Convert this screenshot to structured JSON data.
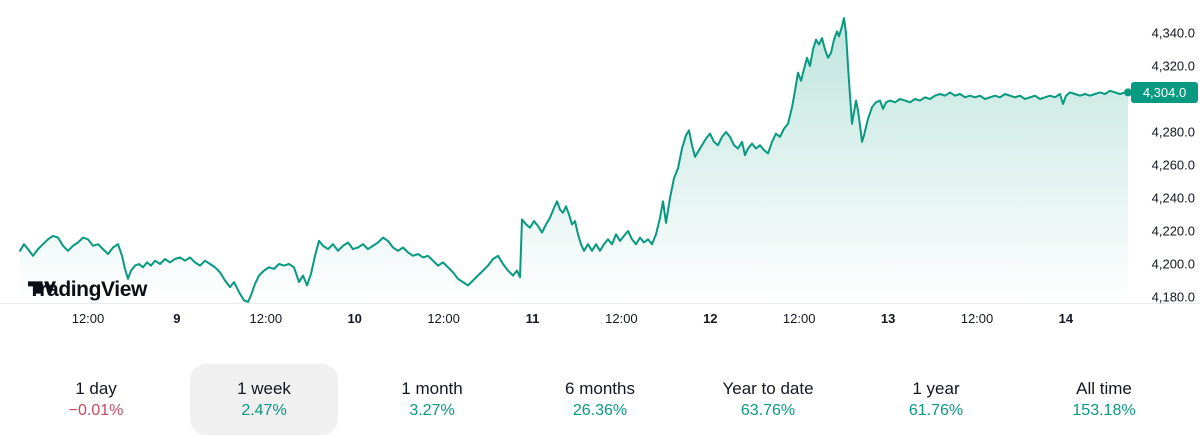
{
  "brand": {
    "name": "TradingView"
  },
  "theme": {
    "positive": "#089981",
    "negative": "#c64a5f",
    "selected_bg": "#f0f0f0",
    "text": "#131722",
    "badge_bg": "#089981"
  },
  "chart_data": {
    "type": "area",
    "title": "",
    "xlabel": "",
    "ylabel": "",
    "grid": false,
    "legend": false,
    "line_color": "#089981",
    "ylim": [
      4170,
      4355
    ],
    "current_price_label": "4,304.0",
    "current_price_value": 4304.0,
    "y_ticks": [
      {
        "value": 4340,
        "label": "4,340.0"
      },
      {
        "value": 4320,
        "label": "4,320.0"
      },
      {
        "value": 4280,
        "label": "4,280.0"
      },
      {
        "value": 4260,
        "label": "4,260.0"
      },
      {
        "value": 4240,
        "label": "4,240.0"
      },
      {
        "value": 4220,
        "label": "4,220.0"
      },
      {
        "value": 4200,
        "label": "4,200.0"
      },
      {
        "value": 4180,
        "label": "4,180.0"
      }
    ],
    "x_ticks": [
      {
        "label": "12:00",
        "bold": false
      },
      {
        "label": "9",
        "bold": true
      },
      {
        "label": "12:00",
        "bold": false
      },
      {
        "label": "10",
        "bold": true
      },
      {
        "label": "12:00",
        "bold": false
      },
      {
        "label": "11",
        "bold": true
      },
      {
        "label": "12:00",
        "bold": false
      },
      {
        "label": "12",
        "bold": true
      },
      {
        "label": "12:00",
        "bold": false
      },
      {
        "label": "13",
        "bold": true
      },
      {
        "label": "12:00",
        "bold": false
      },
      {
        "label": "14",
        "bold": true
      }
    ],
    "points": [
      [
        20,
        4208
      ],
      [
        24,
        4212
      ],
      [
        28,
        4209
      ],
      [
        33,
        4205
      ],
      [
        38,
        4209
      ],
      [
        43,
        4212
      ],
      [
        48,
        4215
      ],
      [
        53,
        4217
      ],
      [
        58,
        4216
      ],
      [
        63,
        4211
      ],
      [
        68,
        4208
      ],
      [
        73,
        4211
      ],
      [
        78,
        4213
      ],
      [
        83,
        4216
      ],
      [
        88,
        4215
      ],
      [
        93,
        4211
      ],
      [
        98,
        4212
      ],
      [
        103,
        4209
      ],
      [
        108,
        4206
      ],
      [
        113,
        4210
      ],
      [
        118,
        4212
      ],
      [
        122,
        4205
      ],
      [
        125,
        4197
      ],
      [
        128,
        4191
      ],
      [
        131,
        4196
      ],
      [
        135,
        4199
      ],
      [
        139,
        4200
      ],
      [
        143,
        4198
      ],
      [
        147,
        4201
      ],
      [
        151,
        4199
      ],
      [
        155,
        4202
      ],
      [
        160,
        4200
      ],
      [
        165,
        4203
      ],
      [
        170,
        4201
      ],
      [
        175,
        4203
      ],
      [
        180,
        4204
      ],
      [
        185,
        4202
      ],
      [
        190,
        4204
      ],
      [
        195,
        4201
      ],
      [
        200,
        4199
      ],
      [
        205,
        4202
      ],
      [
        210,
        4200
      ],
      [
        215,
        4198
      ],
      [
        220,
        4195
      ],
      [
        225,
        4190
      ],
      [
        230,
        4186
      ],
      [
        234,
        4189
      ],
      [
        239,
        4183
      ],
      [
        244,
        4178
      ],
      [
        248,
        4177
      ],
      [
        251,
        4181
      ],
      [
        255,
        4188
      ],
      [
        259,
        4193
      ],
      [
        264,
        4196
      ],
      [
        269,
        4198
      ],
      [
        274,
        4197
      ],
      [
        279,
        4200
      ],
      [
        284,
        4199
      ],
      [
        289,
        4200
      ],
      [
        294,
        4198
      ],
      [
        299,
        4189
      ],
      [
        303,
        4193
      ],
      [
        307,
        4187
      ],
      [
        311,
        4194
      ],
      [
        315,
        4205
      ],
      [
        319,
        4214
      ],
      [
        323,
        4211
      ],
      [
        328,
        4209
      ],
      [
        333,
        4212
      ],
      [
        338,
        4208
      ],
      [
        343,
        4211
      ],
      [
        348,
        4213
      ],
      [
        353,
        4209
      ],
      [
        358,
        4210
      ],
      [
        363,
        4212
      ],
      [
        368,
        4209
      ],
      [
        373,
        4211
      ],
      [
        378,
        4213
      ],
      [
        383,
        4216
      ],
      [
        388,
        4214
      ],
      [
        393,
        4210
      ],
      [
        398,
        4208
      ],
      [
        403,
        4210
      ],
      [
        408,
        4207
      ],
      [
        413,
        4205
      ],
      [
        418,
        4206
      ],
      [
        423,
        4204
      ],
      [
        428,
        4205
      ],
      [
        433,
        4202
      ],
      [
        438,
        4199
      ],
      [
        443,
        4201
      ],
      [
        448,
        4198
      ],
      [
        453,
        4195
      ],
      [
        458,
        4191
      ],
      [
        463,
        4189
      ],
      [
        468,
        4187
      ],
      [
        473,
        4190
      ],
      [
        478,
        4193
      ],
      [
        483,
        4196
      ],
      [
        488,
        4199
      ],
      [
        493,
        4203
      ],
      [
        498,
        4205
      ],
      [
        503,
        4200
      ],
      [
        508,
        4196
      ],
      [
        513,
        4193
      ],
      [
        517,
        4196
      ],
      [
        520,
        4192
      ],
      [
        522,
        4227
      ],
      [
        526,
        4224
      ],
      [
        530,
        4222
      ],
      [
        534,
        4226
      ],
      [
        538,
        4223
      ],
      [
        542,
        4219
      ],
      [
        546,
        4224
      ],
      [
        550,
        4228
      ],
      [
        554,
        4234
      ],
      [
        557,
        4238
      ],
      [
        560,
        4233
      ],
      [
        563,
        4231
      ],
      [
        566,
        4235
      ],
      [
        569,
        4230
      ],
      [
        572,
        4224
      ],
      [
        575,
        4226
      ],
      [
        578,
        4218
      ],
      [
        581,
        4212
      ],
      [
        584,
        4208
      ],
      [
        588,
        4212
      ],
      [
        592,
        4208
      ],
      [
        596,
        4212
      ],
      [
        600,
        4208
      ],
      [
        604,
        4212
      ],
      [
        608,
        4215
      ],
      [
        612,
        4212
      ],
      [
        616,
        4218
      ],
      [
        620,
        4214
      ],
      [
        624,
        4217
      ],
      [
        628,
        4220
      ],
      [
        632,
        4215
      ],
      [
        636,
        4212
      ],
      [
        640,
        4216
      ],
      [
        644,
        4213
      ],
      [
        648,
        4215
      ],
      [
        652,
        4212
      ],
      [
        656,
        4218
      ],
      [
        660,
        4228
      ],
      [
        663,
        4238
      ],
      [
        666,
        4225
      ],
      [
        670,
        4240
      ],
      [
        674,
        4252
      ],
      [
        678,
        4258
      ],
      [
        682,
        4270
      ],
      [
        686,
        4278
      ],
      [
        689,
        4281
      ],
      [
        692,
        4272
      ],
      [
        695,
        4265
      ],
      [
        698,
        4268
      ],
      [
        702,
        4272
      ],
      [
        706,
        4276
      ],
      [
        710,
        4279
      ],
      [
        714,
        4274
      ],
      [
        718,
        4272
      ],
      [
        722,
        4277
      ],
      [
        726,
        4280
      ],
      [
        730,
        4277
      ],
      [
        734,
        4272
      ],
      [
        738,
        4270
      ],
      [
        742,
        4274
      ],
      [
        745,
        4266
      ],
      [
        748,
        4270
      ],
      [
        752,
        4273
      ],
      [
        756,
        4270
      ],
      [
        760,
        4272
      ],
      [
        764,
        4269
      ],
      [
        768,
        4267
      ],
      [
        772,
        4274
      ],
      [
        776,
        4279
      ],
      [
        780,
        4277
      ],
      [
        784,
        4282
      ],
      [
        788,
        4285
      ],
      [
        792,
        4295
      ],
      [
        795,
        4305
      ],
      [
        798,
        4316
      ],
      [
        801,
        4311
      ],
      [
        804,
        4318
      ],
      [
        807,
        4325
      ],
      [
        810,
        4320
      ],
      [
        813,
        4330
      ],
      [
        816,
        4336
      ],
      [
        819,
        4333
      ],
      [
        822,
        4337
      ],
      [
        825,
        4330
      ],
      [
        828,
        4325
      ],
      [
        831,
        4328
      ],
      [
        834,
        4336
      ],
      [
        837,
        4341
      ],
      [
        839,
        4338
      ],
      [
        842,
        4344
      ],
      [
        844,
        4349
      ],
      [
        846,
        4340
      ],
      [
        848,
        4320
      ],
      [
        850,
        4302
      ],
      [
        852,
        4285
      ],
      [
        854,
        4292
      ],
      [
        856,
        4299
      ],
      [
        858,
        4293
      ],
      [
        860,
        4284
      ],
      [
        862,
        4274
      ],
      [
        864,
        4278
      ],
      [
        868,
        4288
      ],
      [
        872,
        4295
      ],
      [
        876,
        4298
      ],
      [
        880,
        4299
      ],
      [
        883,
        4294
      ],
      [
        886,
        4298
      ],
      [
        890,
        4299
      ],
      [
        895,
        4298
      ],
      [
        900,
        4300
      ],
      [
        905,
        4299
      ],
      [
        910,
        4298
      ],
      [
        915,
        4300
      ],
      [
        920,
        4299
      ],
      [
        925,
        4301
      ],
      [
        930,
        4300
      ],
      [
        935,
        4302
      ],
      [
        940,
        4303
      ],
      [
        945,
        4302
      ],
      [
        950,
        4304
      ],
      [
        955,
        4302
      ],
      [
        960,
        4303
      ],
      [
        965,
        4301
      ],
      [
        970,
        4302
      ],
      [
        975,
        4301
      ],
      [
        980,
        4302
      ],
      [
        985,
        4300
      ],
      [
        990,
        4301
      ],
      [
        995,
        4302
      ],
      [
        1000,
        4301
      ],
      [
        1005,
        4303
      ],
      [
        1010,
        4302
      ],
      [
        1015,
        4301
      ],
      [
        1020,
        4302
      ],
      [
        1025,
        4300
      ],
      [
        1030,
        4301
      ],
      [
        1035,
        4302
      ],
      [
        1040,
        4300
      ],
      [
        1045,
        4301
      ],
      [
        1050,
        4302
      ],
      [
        1055,
        4301
      ],
      [
        1060,
        4303
      ],
      [
        1063,
        4297
      ],
      [
        1066,
        4302
      ],
      [
        1070,
        4304
      ],
      [
        1075,
        4303
      ],
      [
        1080,
        4302
      ],
      [
        1085,
        4303
      ],
      [
        1090,
        4302
      ],
      [
        1095,
        4303
      ],
      [
        1100,
        4304
      ],
      [
        1105,
        4303
      ],
      [
        1110,
        4305
      ],
      [
        1115,
        4304
      ],
      [
        1120,
        4303
      ],
      [
        1125,
        4304
      ],
      [
        1128,
        4304
      ]
    ]
  },
  "ranges": [
    {
      "label": "1 day",
      "change": "−0.01%",
      "negative": true,
      "selected": false
    },
    {
      "label": "1 week",
      "change": "2.47%",
      "negative": false,
      "selected": true
    },
    {
      "label": "1 month",
      "change": "3.27%",
      "negative": false,
      "selected": false
    },
    {
      "label": "6 months",
      "change": "26.36%",
      "negative": false,
      "selected": false
    },
    {
      "label": "Year to date",
      "change": "63.76%",
      "negative": false,
      "selected": false
    },
    {
      "label": "1 year",
      "change": "61.76%",
      "negative": false,
      "selected": false
    },
    {
      "label": "All time",
      "change": "153.18%",
      "negative": false,
      "selected": false
    }
  ]
}
